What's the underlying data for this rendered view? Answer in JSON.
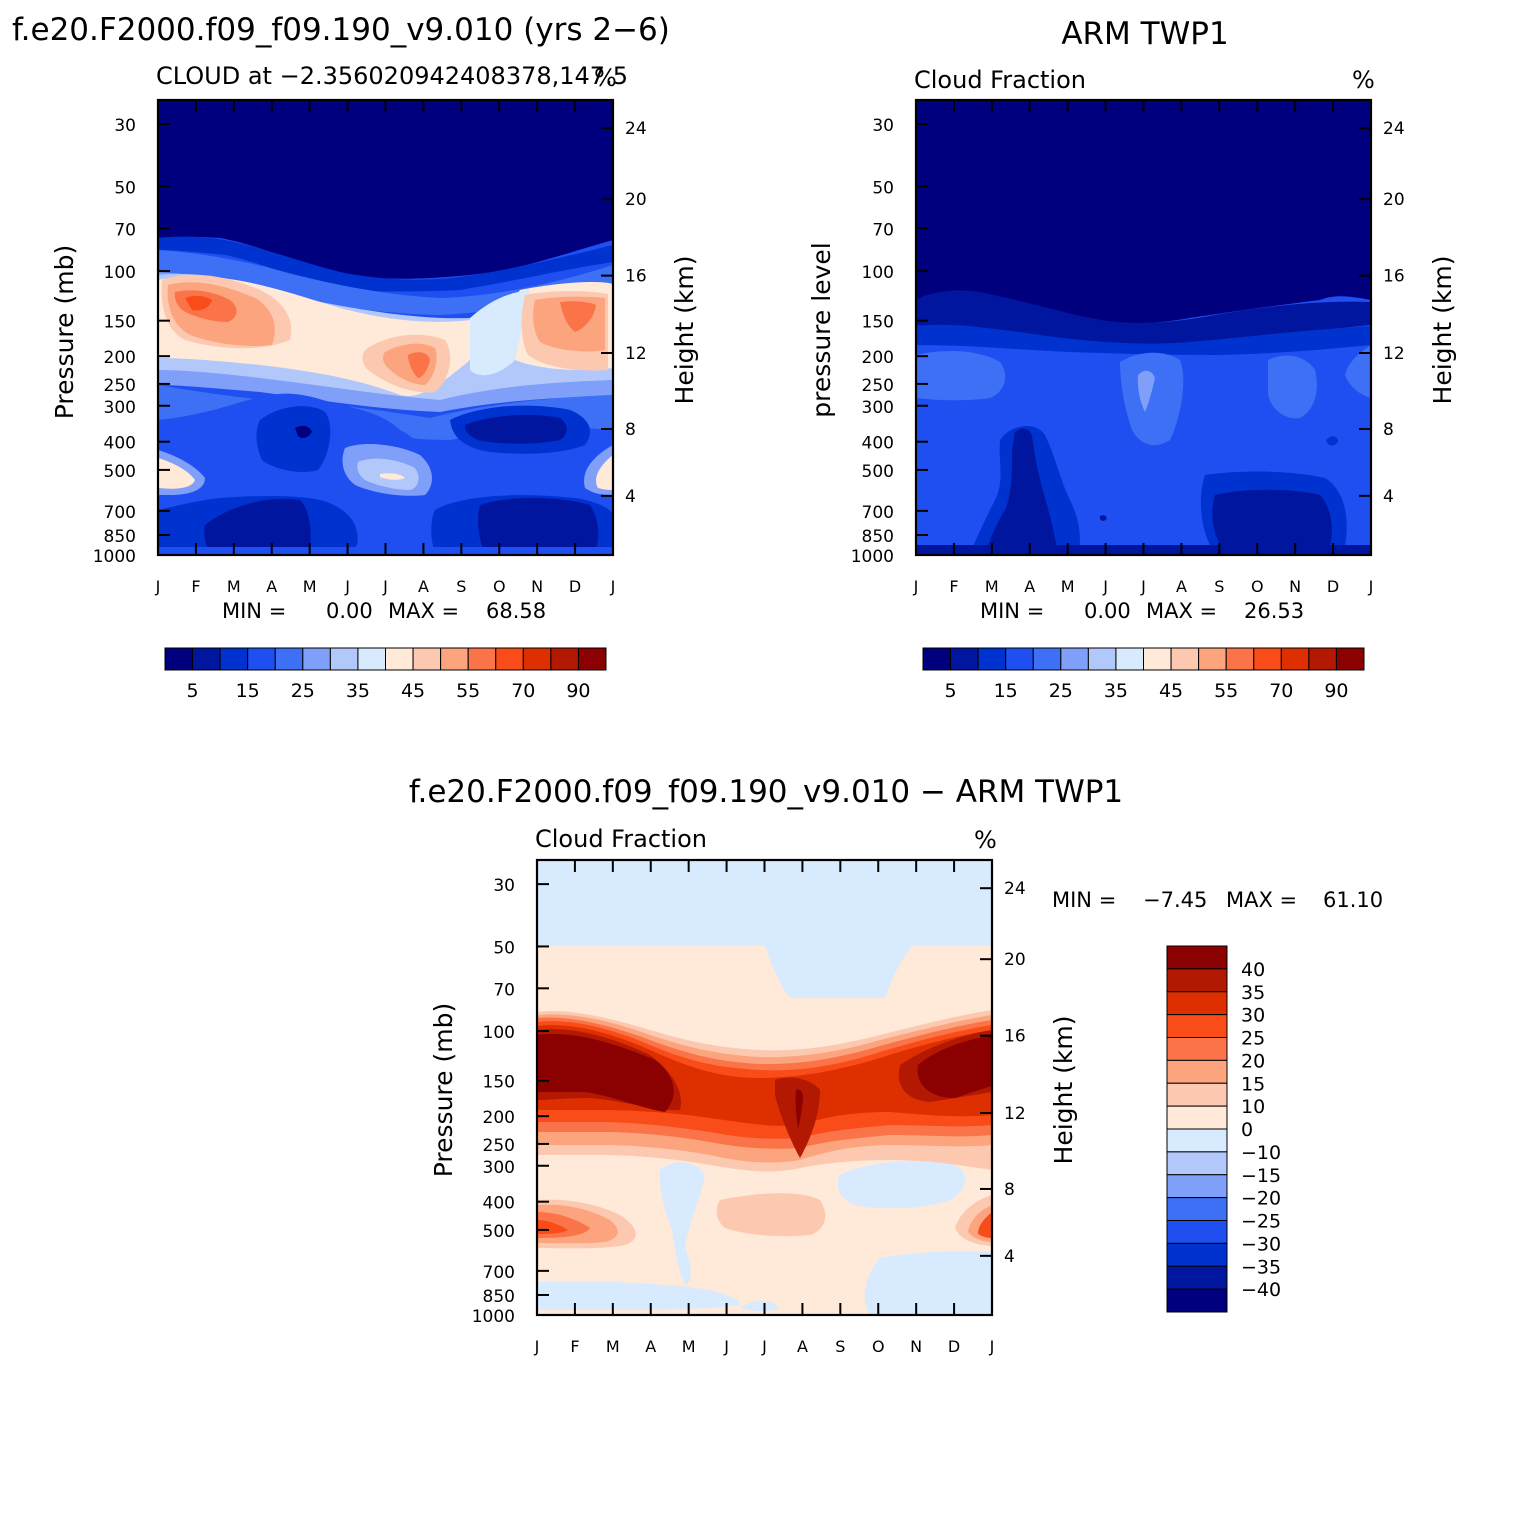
{
  "colors": {
    "main_scale": [
      "#00007f",
      "#00169f",
      "#0032d0",
      "#1f4ff0",
      "#3d70f5",
      "#7f9ff8",
      "#b2c8fb",
      "#d8eafe",
      "#ffe9d8",
      "#fcc9b0",
      "#fba47e",
      "#fb7348",
      "#f94c18",
      "#dd2f00",
      "#b21802",
      "#8b0000"
    ],
    "diff_scale": [
      "#00007f",
      "#00169f",
      "#0032d0",
      "#1f4ff0",
      "#3d70f5",
      "#7f9ff8",
      "#b2c8fb",
      "#d8eafe",
      "#ffe9d8",
      "#fcc9b0",
      "#fba47e",
      "#fb7348",
      "#f94c18",
      "#dd2f00",
      "#b21802",
      "#8b0000"
    ]
  },
  "chart_data": [
    {
      "type": "heatmap",
      "panel": "top-left",
      "title": "f.e20.F2000.f09_f09.190_v9.010 (yrs 2−6)",
      "subtitle_left": "CLOUD at −2.356020942408378,147.5",
      "subtitle_right": "%",
      "ylabel": "Pressure (mb)",
      "ylabel_right": "Height (km)",
      "x_ticks": [
        "J",
        "F",
        "M",
        "A",
        "M",
        "J",
        "J",
        "A",
        "S",
        "O",
        "N",
        "D",
        "J"
      ],
      "y_ticks": [
        "30",
        "50",
        "70",
        "100",
        "150",
        "200",
        "250",
        "300",
        "400",
        "500",
        "700",
        "850",
        "1000"
      ],
      "y_ticks_right": [
        "24",
        "20",
        "16",
        "12",
        "8",
        "4"
      ],
      "stats": {
        "min_label": "MIN =",
        "min": "0.00",
        "max_label": "MAX =",
        "max": "68.58"
      },
      "levels": [
        "5",
        "15",
        "25",
        "35",
        "45",
        "55",
        "70",
        "90"
      ],
      "colorbar": "horizontal-below"
    },
    {
      "type": "heatmap",
      "panel": "top-right",
      "title": "ARM TWP1",
      "subtitle_left": "Cloud Fraction",
      "subtitle_right": "%",
      "ylabel": "pressure level",
      "ylabel_right": "Height (km)",
      "x_ticks": [
        "J",
        "F",
        "M",
        "A",
        "M",
        "J",
        "J",
        "A",
        "S",
        "O",
        "N",
        "D",
        "J"
      ],
      "y_ticks": [
        "30",
        "50",
        "70",
        "100",
        "150",
        "200",
        "250",
        "300",
        "400",
        "500",
        "700",
        "850",
        "1000"
      ],
      "y_ticks_right": [
        "24",
        "20",
        "16",
        "12",
        "8",
        "4"
      ],
      "stats": {
        "min_label": "MIN =",
        "min": "0.00",
        "max_label": "MAX =",
        "max": "26.53"
      },
      "levels": [
        "5",
        "15",
        "25",
        "35",
        "45",
        "55",
        "70",
        "90"
      ],
      "colorbar": "horizontal-below"
    },
    {
      "type": "heatmap",
      "panel": "bottom",
      "title": "f.e20.F2000.f09_f09.190_v9.010 − ARM TWP1",
      "subtitle_left": "Cloud Fraction",
      "subtitle_right": "%",
      "ylabel": "Pressure (mb)",
      "ylabel_right": "Height (km)",
      "x_ticks": [
        "J",
        "F",
        "M",
        "A",
        "M",
        "J",
        "J",
        "A",
        "S",
        "O",
        "N",
        "D",
        "J"
      ],
      "y_ticks": [
        "30",
        "50",
        "70",
        "100",
        "150",
        "200",
        "250",
        "300",
        "400",
        "500",
        "700",
        "850",
        "1000"
      ],
      "y_ticks_right": [
        "24",
        "20",
        "16",
        "12",
        "8",
        "4"
      ],
      "stats": {
        "min_label": "MIN =",
        "min": "−7.45",
        "max_label": "MAX =",
        "max": "61.10"
      },
      "levels": [
        "40",
        "35",
        "30",
        "25",
        "20",
        "15",
        "10",
        "0",
        "−10",
        "−15",
        "−20",
        "−25",
        "−30",
        "−35",
        "−40"
      ],
      "colorbar": "vertical-right"
    }
  ]
}
